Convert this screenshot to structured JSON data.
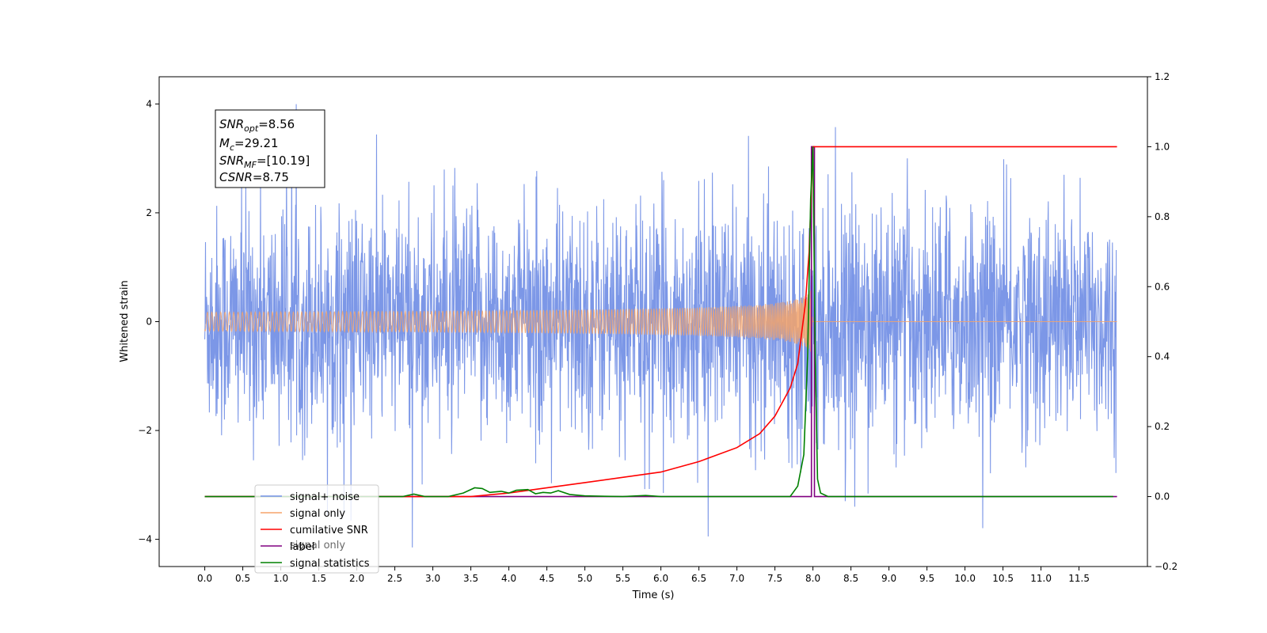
{
  "chart_data": {
    "type": "line",
    "xlabel": "Time (s)",
    "ylabel": "Whitened strain",
    "xlim": [
      -0.6,
      12.4
    ],
    "ylim_left": [
      -4.5,
      4.5
    ],
    "ylim_right": [
      -0.2,
      1.2
    ],
    "x_ticks": [
      "0.0",
      "0.5",
      "1.0",
      "1.5",
      "2.0",
      "2.5",
      "3.0",
      "3.5",
      "4.0",
      "4.5",
      "5.0",
      "5.5",
      "6.0",
      "6.5",
      "7.0",
      "7.5",
      "8.0",
      "8.5",
      "9.0",
      "9.5",
      "10.0",
      "10.5",
      "11.0",
      "11.5"
    ],
    "y_ticks_left": [
      "4",
      "2",
      "0",
      "−2",
      "−4"
    ],
    "y_ticks_right": [
      "1.2",
      "1.0",
      "0.8",
      "0.6",
      "0.4",
      "0.2",
      "0.0",
      "−0.2"
    ],
    "grid": false,
    "legend_position": "lower-left",
    "annotation": {
      "lines": [
        {
          "sym": "SNR",
          "sub": "opt",
          "val": "=8.56"
        },
        {
          "sym": "M",
          "sub": "c",
          "val": "=29.21"
        },
        {
          "sym": "SNR",
          "sub": "MF",
          "val": "=[10.19]"
        },
        {
          "sym": "CSNR",
          "sub": "",
          "val": "=8.75"
        }
      ]
    },
    "series": [
      {
        "name": "signal+ noise",
        "color": "#7591e6",
        "axis": "left",
        "description_value": "noise band approx -2 to 2, spikes to about 4 / -4",
        "time_range": [
          0.0,
          11.99
        ]
      },
      {
        "name": "signal only",
        "color": "#f5a36a",
        "axis": "left",
        "chirp_end_time": 8.0,
        "peak_amplitude": 0.7
      },
      {
        "name": "cumilative SNR",
        "color": "#ff0000",
        "axis": "right",
        "x": [
          0.0,
          3.5,
          4.0,
          5.0,
          6.0,
          6.5,
          7.0,
          7.3,
          7.5,
          7.7,
          7.8,
          7.9,
          7.95,
          8.0,
          8.02,
          12.0
        ],
        "y": [
          0.0,
          0.0,
          0.01,
          0.04,
          0.07,
          0.1,
          0.14,
          0.18,
          0.23,
          0.31,
          0.38,
          0.55,
          0.7,
          1.0,
          1.0,
          1.0
        ]
      },
      {
        "name": "label",
        "color": "#800080",
        "axis": "right",
        "x": [
          0.0,
          7.98,
          7.98,
          8.02,
          8.02,
          12.0
        ],
        "y": [
          0.0,
          0.0,
          1.0,
          1.0,
          0.0,
          0.0
        ]
      },
      {
        "name": "signal statistics",
        "color": "#008000",
        "axis": "right",
        "x": [
          0.0,
          2.6,
          2.75,
          2.9,
          3.2,
          3.4,
          3.55,
          3.65,
          3.75,
          3.9,
          4.0,
          4.1,
          4.25,
          4.35,
          4.45,
          4.55,
          4.65,
          4.8,
          5.0,
          5.5,
          5.8,
          6.0,
          7.7,
          7.8,
          7.88,
          7.93,
          7.97,
          8.0,
          8.03,
          8.06,
          8.1,
          8.2,
          11.95
        ],
        "y": [
          0.0,
          0.0,
          0.007,
          0.0,
          0.0,
          0.01,
          0.025,
          0.023,
          0.012,
          0.015,
          0.01,
          0.018,
          0.02,
          0.008,
          0.012,
          0.01,
          0.017,
          0.006,
          0.002,
          0.0,
          0.003,
          0.0,
          0.0,
          0.03,
          0.12,
          0.4,
          0.85,
          1.0,
          0.4,
          0.05,
          0.01,
          0.0,
          0.0
        ]
      }
    ],
    "legend_extra": {
      "name": "signal only",
      "color": "#808080"
    }
  }
}
